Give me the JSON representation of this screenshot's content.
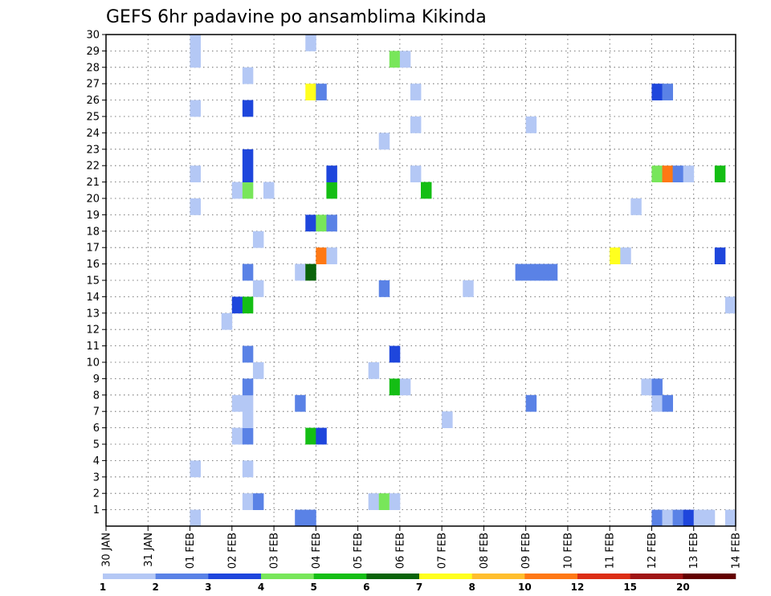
{
  "chart_data": {
    "type": "heatmap",
    "title": "GEFS 6hr padavine po ansamblima Kikinda",
    "x_tick_labels": [
      "30 JAN",
      "31 JAN",
      "01 FEB",
      "02 FEB",
      "03 FEB",
      "04 FEB",
      "05 FEB",
      "06 FEB",
      "07 FEB",
      "08 FEB",
      "09 FEB",
      "10 FEB",
      "11 FEB",
      "12 FEB",
      "13 FEB",
      "14 FEB"
    ],
    "y_tick_labels": [
      "1",
      "2",
      "3",
      "4",
      "5",
      "6",
      "7",
      "8",
      "9",
      "10",
      "11",
      "12",
      "13",
      "14",
      "15",
      "16",
      "17",
      "18",
      "19",
      "20",
      "21",
      "22",
      "23",
      "24",
      "25",
      "26",
      "27",
      "28",
      "29",
      "30"
    ],
    "x_range": [
      0,
      60
    ],
    "y_range": [
      0,
      30
    ],
    "grid": true,
    "legend": {
      "placement": "bottom",
      "labels": [
        "1",
        "2",
        "3",
        "4",
        "5",
        "6",
        "7",
        "8",
        "10",
        "12",
        "15",
        "20"
      ],
      "colors": [
        "#b4c8f5",
        "#5a82e6",
        "#1e46dc",
        "#78e65a",
        "#14be14",
        "#0a640a",
        "#ffff1e",
        "#ffbe2d",
        "#ff7814",
        "#dc2d14",
        "#a01414",
        "#640000"
      ]
    },
    "cells": [
      {
        "x": 8,
        "y": 0,
        "v": 1
      },
      {
        "x": 8,
        "y": 3,
        "v": 1
      },
      {
        "x": 8,
        "y": 19,
        "v": 1
      },
      {
        "x": 8,
        "y": 21,
        "v": 1
      },
      {
        "x": 8,
        "y": 25,
        "v": 1
      },
      {
        "x": 8,
        "y": 28,
        "v": 1
      },
      {
        "x": 8,
        "y": 29,
        "v": 1
      },
      {
        "x": 11,
        "y": 12,
        "v": 1
      },
      {
        "x": 12,
        "y": 5,
        "v": 1
      },
      {
        "x": 12,
        "y": 7,
        "v": 1
      },
      {
        "x": 12,
        "y": 20,
        "v": 1
      },
      {
        "x": 12,
        "y": 13,
        "v": 3
      },
      {
        "x": 13,
        "y": 1,
        "v": 1
      },
      {
        "x": 13,
        "y": 3,
        "v": 1
      },
      {
        "x": 13,
        "y": 5,
        "v": 2
      },
      {
        "x": 13,
        "y": 6,
        "v": 1
      },
      {
        "x": 13,
        "y": 7,
        "v": 1
      },
      {
        "x": 13,
        "y": 8,
        "v": 2
      },
      {
        "x": 13,
        "y": 10,
        "v": 2
      },
      {
        "x": 13,
        "y": 13,
        "v": 5
      },
      {
        "x": 13,
        "y": 15,
        "v": 2
      },
      {
        "x": 13,
        "y": 20,
        "v": 4
      },
      {
        "x": 13,
        "y": 21,
        "v": 3
      },
      {
        "x": 13,
        "y": 22,
        "v": 3
      },
      {
        "x": 13,
        "y": 25,
        "v": 3
      },
      {
        "x": 13,
        "y": 27,
        "v": 1
      },
      {
        "x": 14,
        "y": 1,
        "v": 2
      },
      {
        "x": 14,
        "y": 9,
        "v": 1
      },
      {
        "x": 14,
        "y": 14,
        "v": 1
      },
      {
        "x": 14,
        "y": 17,
        "v": 1
      },
      {
        "x": 15,
        "y": 20,
        "v": 1
      },
      {
        "x": 18,
        "y": 0,
        "v": 2
      },
      {
        "x": 18,
        "y": 7,
        "v": 2
      },
      {
        "x": 18,
        "y": 15,
        "v": 1
      },
      {
        "x": 19,
        "y": 0,
        "v": 2
      },
      {
        "x": 19,
        "y": 5,
        "v": 5
      },
      {
        "x": 19,
        "y": 15,
        "v": 6
      },
      {
        "x": 19,
        "y": 18,
        "v": 3
      },
      {
        "x": 19,
        "y": 26,
        "v": 7
      },
      {
        "x": 19,
        "y": 29,
        "v": 1
      },
      {
        "x": 20,
        "y": 5,
        "v": 3
      },
      {
        "x": 20,
        "y": 16,
        "v": 10
      },
      {
        "x": 20,
        "y": 18,
        "v": 4
      },
      {
        "x": 20,
        "y": 26,
        "v": 2
      },
      {
        "x": 21,
        "y": 16,
        "v": 1
      },
      {
        "x": 21,
        "y": 18,
        "v": 2
      },
      {
        "x": 21,
        "y": 20,
        "v": 5
      },
      {
        "x": 21,
        "y": 21,
        "v": 3
      },
      {
        "x": 25,
        "y": 1,
        "v": 1
      },
      {
        "x": 25,
        "y": 9,
        "v": 1
      },
      {
        "x": 26,
        "y": 1,
        "v": 4
      },
      {
        "x": 26,
        "y": 14,
        "v": 2
      },
      {
        "x": 26,
        "y": 23,
        "v": 1
      },
      {
        "x": 27,
        "y": 1,
        "v": 1
      },
      {
        "x": 27,
        "y": 8,
        "v": 5
      },
      {
        "x": 27,
        "y": 10,
        "v": 3
      },
      {
        "x": 27,
        "y": 28,
        "v": 4
      },
      {
        "x": 28,
        "y": 8,
        "v": 1
      },
      {
        "x": 28,
        "y": 28,
        "v": 1
      },
      {
        "x": 29,
        "y": 21,
        "v": 1
      },
      {
        "x": 29,
        "y": 24,
        "v": 1
      },
      {
        "x": 29,
        "y": 26,
        "v": 1
      },
      {
        "x": 30,
        "y": 20,
        "v": 5
      },
      {
        "x": 32,
        "y": 6,
        "v": 1
      },
      {
        "x": 34,
        "y": 14,
        "v": 1
      },
      {
        "x": 39,
        "y": 15,
        "v": 2
      },
      {
        "x": 40,
        "y": 7,
        "v": 2
      },
      {
        "x": 40,
        "y": 15,
        "v": 2
      },
      {
        "x": 40,
        "y": 24,
        "v": 1
      },
      {
        "x": 41,
        "y": 15,
        "v": 2
      },
      {
        "x": 42,
        "y": 15,
        "v": 2
      },
      {
        "x": 48,
        "y": 16,
        "v": 7
      },
      {
        "x": 49,
        "y": 16,
        "v": 1
      },
      {
        "x": 50,
        "y": 19,
        "v": 1
      },
      {
        "x": 51,
        "y": 8,
        "v": 1
      },
      {
        "x": 52,
        "y": 0,
        "v": 2
      },
      {
        "x": 52,
        "y": 7,
        "v": 1
      },
      {
        "x": 52,
        "y": 8,
        "v": 2
      },
      {
        "x": 52,
        "y": 21,
        "v": 4
      },
      {
        "x": 52,
        "y": 26,
        "v": 3
      },
      {
        "x": 53,
        "y": 0,
        "v": 1
      },
      {
        "x": 53,
        "y": 7,
        "v": 2
      },
      {
        "x": 53,
        "y": 21,
        "v": 10
      },
      {
        "x": 53,
        "y": 26,
        "v": 2
      },
      {
        "x": 54,
        "y": 0,
        "v": 2
      },
      {
        "x": 54,
        "y": 21,
        "v": 2
      },
      {
        "x": 55,
        "y": 0,
        "v": 3
      },
      {
        "x": 55,
        "y": 21,
        "v": 1
      },
      {
        "x": 56,
        "y": 0,
        "v": 1
      },
      {
        "x": 57,
        "y": 0,
        "v": 1
      },
      {
        "x": 59,
        "y": 13,
        "v": 1
      },
      {
        "x": 59,
        "y": 0,
        "v": 1
      },
      {
        "x": 58,
        "y": 16,
        "v": 3
      },
      {
        "x": 58,
        "y": 21,
        "v": 5
      }
    ]
  }
}
